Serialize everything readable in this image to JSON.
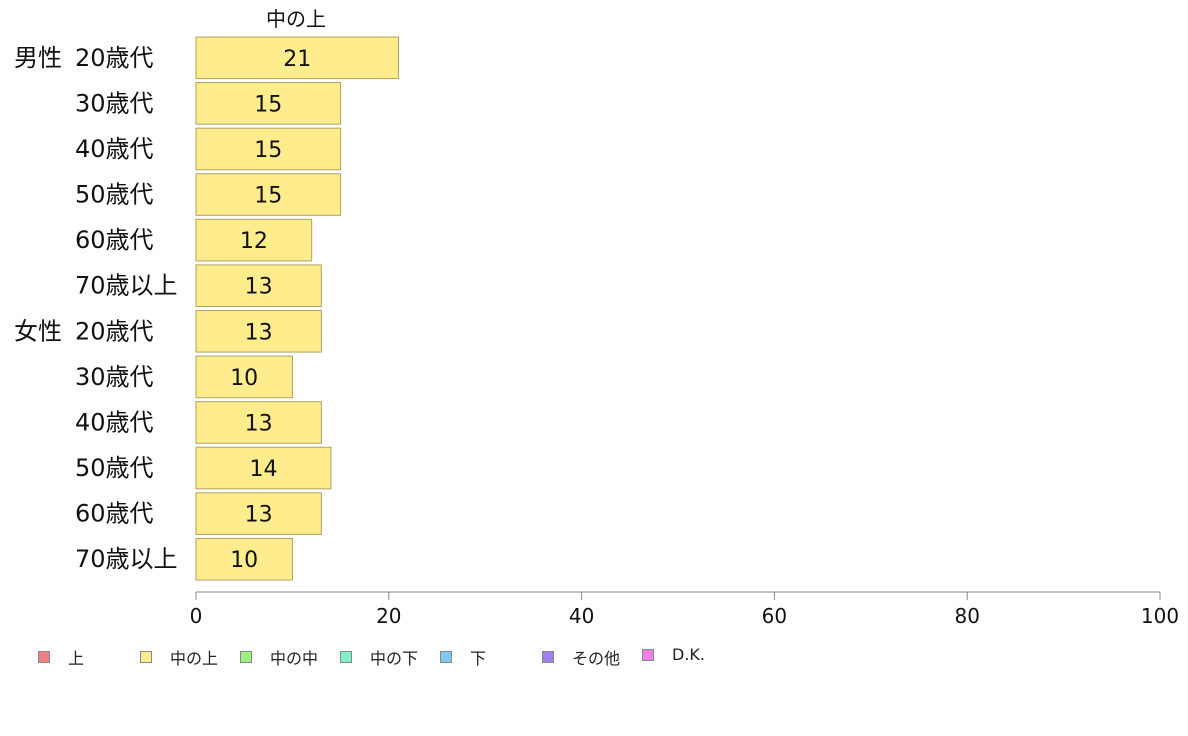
{
  "chart_data": {
    "type": "bar",
    "orientation": "horizontal",
    "series": [
      {
        "name": "中の上",
        "color": "#ffec8c",
        "values": [
          21,
          15,
          15,
          15,
          12,
          13,
          13,
          10,
          13,
          14,
          13,
          10
        ]
      }
    ],
    "categories": [
      {
        "group": "男性",
        "label": "20歳代"
      },
      {
        "group": "",
        "label": "30歳代"
      },
      {
        "group": "",
        "label": "40歳代"
      },
      {
        "group": "",
        "label": "50歳代"
      },
      {
        "group": "",
        "label": "60歳代"
      },
      {
        "group": "",
        "label": "70歳以上"
      },
      {
        "group": "女性",
        "label": "20歳代"
      },
      {
        "group": "",
        "label": "30歳代"
      },
      {
        "group": "",
        "label": "40歳代"
      },
      {
        "group": "",
        "label": "50歳代"
      },
      {
        "group": "",
        "label": "60歳代"
      },
      {
        "group": "",
        "label": "70歳以上"
      }
    ],
    "xlim": [
      0,
      100
    ],
    "xticks": [
      0,
      20,
      40,
      60,
      80,
      100
    ],
    "grid": false,
    "legend_position": "bottom-left",
    "legend": [
      {
        "label": "上",
        "color": "#f08080"
      },
      {
        "label": "中の上",
        "color": "#ffec8c"
      },
      {
        "label": "中の中",
        "color": "#a0f080"
      },
      {
        "label": "中の下",
        "color": "#80f0c8"
      },
      {
        "label": "下",
        "color": "#80c8f0"
      },
      {
        "label": "その他",
        "color": "#a080f0"
      },
      {
        "label": "D.K.",
        "color": "#f080e8"
      }
    ]
  }
}
